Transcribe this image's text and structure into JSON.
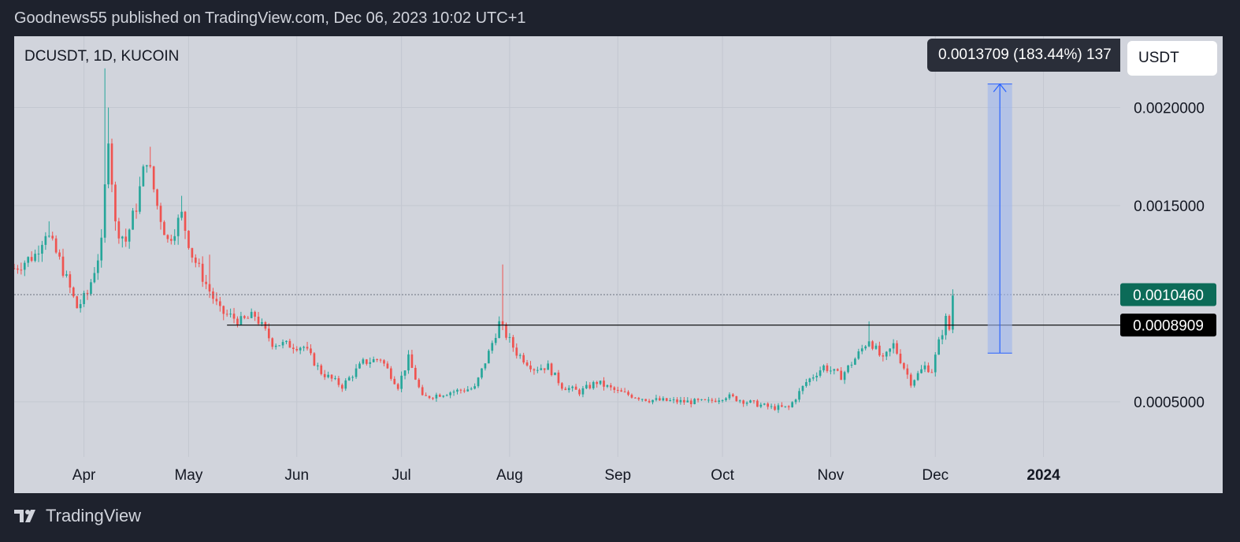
{
  "header": {
    "attribution": "Goodnews55 published on TradingView.com, Dec 06, 2023 10:02 UTC+1"
  },
  "symbol_label": "DCUSDT, 1D, KUCOIN",
  "unit_label": "USDT",
  "footer": {
    "brand": "TradingView"
  },
  "measure": {
    "tooltip": "0.0013709 (183.44%) 137",
    "from": 0.000748,
    "to": 0.00212
  },
  "price_markers": {
    "last_price": "0.0010460",
    "level": "0.0008909"
  },
  "colors": {
    "up": "#26a69a",
    "down": "#ef5350",
    "last_price_bg": "#0c6b58",
    "level_bg": "#000000",
    "measure_fill": "#9fb5ec",
    "measure_line": "#2962ff",
    "background": "#d1d4dc",
    "frame": "#1e222d"
  },
  "chart_data": {
    "type": "candlestick",
    "title": "DCUSDT, 1D, KUCOIN",
    "xlabel": "",
    "ylabel": "",
    "x_ticks": [
      "Apr",
      "May",
      "Jun",
      "Jul",
      "Aug",
      "Sep",
      "Oct",
      "Nov",
      "Dec",
      "2024"
    ],
    "y_ticks": [
      "0.0020000",
      "0.0015000",
      "0.0005000"
    ],
    "ylim": [
      0.0003,
      0.0023
    ],
    "xlim": [
      "2023-03-12",
      "2024-01-23"
    ],
    "grid": true,
    "horizontal_level": 0.0008909,
    "last_price": 0.001046,
    "close_anchors": [
      [
        "2023-03-12",
        0.00118
      ],
      [
        "2023-03-18",
        0.00125
      ],
      [
        "2023-03-21",
        0.00137
      ],
      [
        "2023-03-25",
        0.00122
      ],
      [
        "2023-03-30",
        0.00098
      ],
      [
        "2023-04-02",
        0.00105
      ],
      [
        "2023-04-06",
        0.0013
      ],
      [
        "2023-04-08",
        0.00187
      ],
      [
        "2023-04-10",
        0.0014
      ],
      [
        "2023-04-13",
        0.00132
      ],
      [
        "2023-04-16",
        0.0015
      ],
      [
        "2023-04-19",
        0.00175
      ],
      [
        "2023-04-22",
        0.0015
      ],
      [
        "2023-04-25",
        0.00132
      ],
      [
        "2023-04-29",
        0.00145
      ],
      [
        "2023-05-02",
        0.00125
      ],
      [
        "2023-05-06",
        0.0011
      ],
      [
        "2023-05-10",
        0.00096
      ],
      [
        "2023-05-16",
        0.00091
      ],
      [
        "2023-05-20",
        0.00094
      ],
      [
        "2023-05-25",
        0.0008
      ],
      [
        "2023-06-03",
        0.00078
      ],
      [
        "2023-06-08",
        0.00065
      ],
      [
        "2023-06-14",
        0.00058
      ],
      [
        "2023-06-20",
        0.0007
      ],
      [
        "2023-06-25",
        0.00072
      ],
      [
        "2023-06-30",
        0.00058
      ],
      [
        "2023-07-03",
        0.00072
      ],
      [
        "2023-07-07",
        0.00052
      ],
      [
        "2023-07-15",
        0.00055
      ],
      [
        "2023-07-22",
        0.00057
      ],
      [
        "2023-07-26",
        0.00075
      ],
      [
        "2023-07-29",
        0.0009
      ],
      [
        "2023-08-03",
        0.00075
      ],
      [
        "2023-08-08",
        0.00067
      ],
      [
        "2023-08-12",
        0.00068
      ],
      [
        "2023-08-16",
        0.00058
      ],
      [
        "2023-08-21",
        0.00055
      ],
      [
        "2023-08-26",
        0.0006
      ],
      [
        "2023-09-01",
        0.00055
      ],
      [
        "2023-09-10",
        0.00051
      ],
      [
        "2023-09-20",
        0.0005
      ],
      [
        "2023-09-27",
        0.0005
      ],
      [
        "2023-10-02",
        0.00053
      ],
      [
        "2023-10-08",
        0.0005
      ],
      [
        "2023-10-15",
        0.00047
      ],
      [
        "2023-10-20",
        0.00047
      ],
      [
        "2023-10-25",
        0.0006
      ],
      [
        "2023-10-30",
        0.00068
      ],
      [
        "2023-11-04",
        0.00063
      ],
      [
        "2023-11-08",
        0.00072
      ],
      [
        "2023-11-12",
        0.00082
      ],
      [
        "2023-11-16",
        0.00071
      ],
      [
        "2023-11-19",
        0.00079
      ],
      [
        "2023-11-24",
        0.0006
      ],
      [
        "2023-11-28",
        0.00068
      ],
      [
        "2023-11-30",
        0.00066
      ],
      [
        "2023-12-02",
        0.0008
      ],
      [
        "2023-12-04",
        0.00092
      ],
      [
        "2023-12-05",
        0.00087
      ],
      [
        "2023-12-06",
        0.001046
      ]
    ],
    "wicks": [
      [
        "2023-04-07",
        0.0022
      ],
      [
        "2023-04-08",
        0.002
      ],
      [
        "2023-04-20",
        0.0018
      ],
      [
        "2023-04-29",
        0.00155
      ],
      [
        "2023-03-22",
        0.00142
      ],
      [
        "2023-05-07",
        0.00125
      ],
      [
        "2023-07-30",
        0.0012
      ],
      [
        "2023-11-12",
        0.00091
      ]
    ]
  }
}
